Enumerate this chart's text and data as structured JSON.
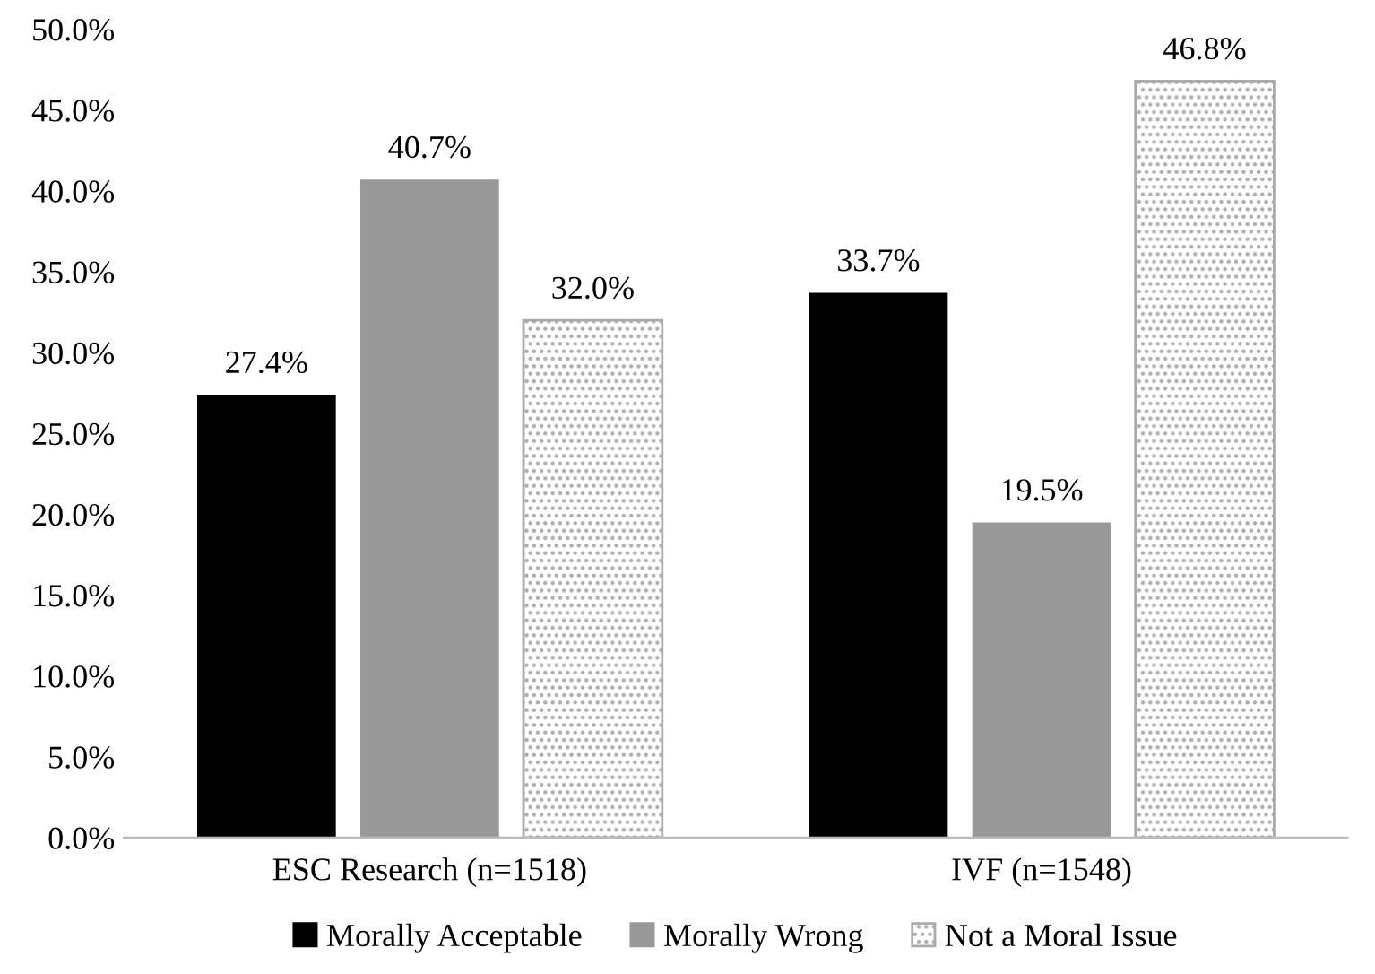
{
  "chart_data": {
    "type": "bar",
    "categories": [
      "ESC Research (n=1518)",
      "IVF (n=1548)"
    ],
    "series": [
      {
        "name": "Morally Acceptable",
        "color": "#000000",
        "values": [
          27.4,
          33.7
        ],
        "value_labels": [
          "27.4%",
          "33.7%"
        ]
      },
      {
        "name": "Morally Wrong",
        "color": "#999999",
        "values": [
          40.7,
          19.5
        ],
        "value_labels": [
          "40.7%",
          "19.5%"
        ]
      },
      {
        "name": "Not a Moral Issue",
        "color": "#aaaaaa",
        "values": [
          32.0,
          46.8
        ],
        "value_labels": [
          "32.0%",
          "46.8%"
        ]
      }
    ],
    "ylim": [
      0,
      50
    ],
    "yticks": [
      {
        "value": 0,
        "label": "0.0%"
      },
      {
        "value": 5,
        "label": "5.0%"
      },
      {
        "value": 10,
        "label": "10.0%"
      },
      {
        "value": 15,
        "label": "15.0%"
      },
      {
        "value": 20,
        "label": "20.0%"
      },
      {
        "value": 25,
        "label": "25.0%"
      },
      {
        "value": 30,
        "label": "30.0%"
      },
      {
        "value": 35,
        "label": "35.0%"
      },
      {
        "value": 40,
        "label": "40.0%"
      },
      {
        "value": 45,
        "label": "45.0%"
      },
      {
        "value": 50,
        "label": "50.0%"
      }
    ],
    "grid": false,
    "legend": "bottom"
  }
}
